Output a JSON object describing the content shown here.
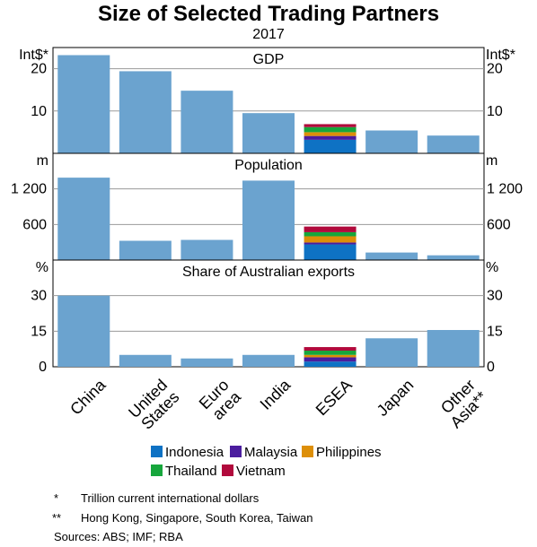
{
  "chart_data": {
    "type": "bar",
    "title": "Size of Selected Trading Partners",
    "subtitle": "2017",
    "categories": [
      "China",
      "United States",
      "Euro area",
      "India",
      "ESEA",
      "Japan",
      "Other Asia**"
    ],
    "category_labels": [
      [
        "China"
      ],
      [
        "United",
        "States"
      ],
      [
        "Euro",
        "area"
      ],
      [
        "India"
      ],
      [
        "ESEA"
      ],
      [
        "Japan"
      ],
      [
        "Other",
        "Asia**"
      ]
    ],
    "panels": [
      {
        "title": "GDP",
        "unit": "Int$*",
        "ylim": [
          0,
          25
        ],
        "ticks": [
          10,
          20
        ],
        "tick_labels": [
          "10",
          "20"
        ],
        "values": [
          23.2,
          19.4,
          14.8,
          9.5,
          null,
          5.4,
          4.2
        ],
        "esea": [
          3.2,
          0.9,
          0.9,
          1.2,
          0.7
        ]
      },
      {
        "title": "Population",
        "unit": "m",
        "ylim": [
          0,
          1800
        ],
        "ticks": [
          600,
          1200
        ],
        "tick_labels": [
          "600",
          "1 200"
        ],
        "values": [
          1390,
          325,
          340,
          1340,
          null,
          127,
          80
        ],
        "esea": [
          264,
          32,
          105,
          69,
          95
        ]
      },
      {
        "title": "Share of Australian exports",
        "unit": "%",
        "ylim": [
          0,
          45
        ],
        "ticks": [
          0,
          15,
          30
        ],
        "tick_labels": [
          "0",
          "15",
          "30"
        ],
        "values": [
          30,
          5,
          3.5,
          5,
          null,
          12,
          15.5
        ],
        "esea": [
          2.2,
          1.8,
          1.0,
          1.8,
          1.5
        ]
      }
    ],
    "esea_series": [
      {
        "name": "Indonesia",
        "color": "#0e72c4"
      },
      {
        "name": "Malaysia",
        "color": "#4b1d9e"
      },
      {
        "name": "Philippines",
        "color": "#dd8f08"
      },
      {
        "name": "Thailand",
        "color": "#17a63c"
      },
      {
        "name": "Vietnam",
        "color": "#b10a3c"
      }
    ],
    "bar_color": "#6ba3cf",
    "legend_position": "bottom",
    "grid": true
  },
  "footnotes": [
    {
      "marker": "*",
      "text": "Trillion current international dollars"
    },
    {
      "marker": "**",
      "text": "Hong Kong, Singapore, South Korea, Taiwan"
    }
  ],
  "sources": "Sources:   ABS; IMF; RBA"
}
